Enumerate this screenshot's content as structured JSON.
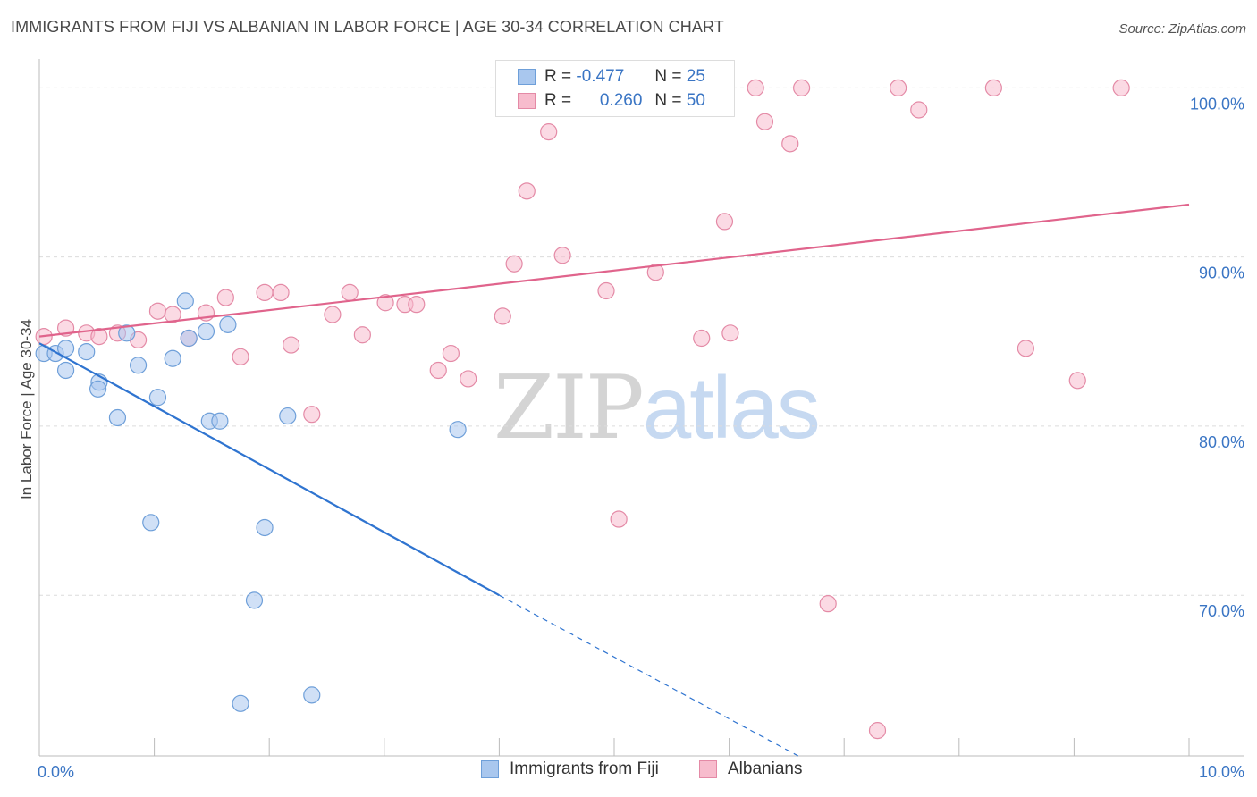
{
  "title": "IMMIGRANTS FROM FIJI VS ALBANIAN IN LABOR FORCE | AGE 30-34 CORRELATION CHART",
  "source": "Source: ZipAtlas.com",
  "watermark": {
    "zip": "ZIP",
    "atlas": "atlas"
  },
  "legend_box": {
    "rows": [
      {
        "r_label": "R =",
        "r_value": "-0.477",
        "n_label": "N =",
        "n_value": "25"
      },
      {
        "r_label": "R =",
        "r_value": "0.260",
        "n_label": "N =",
        "n_value": "50"
      }
    ]
  },
  "colors": {
    "fiji": "#a9c7ee",
    "fiji_stroke": "#6e9fd9",
    "fiji_line": "#2f74d0",
    "alb": "#f7bccd",
    "alb_stroke": "#e48aa6",
    "alb_line": "#e0648c",
    "axis_text": "#3a75c4",
    "grid": "#dcdcdc"
  },
  "chart_data": {
    "type": "scatter",
    "title": "IMMIGRANTS FROM FIJI VS ALBANIAN IN LABOR FORCE | AGE 30-34 CORRELATION CHART",
    "xlabel": "",
    "ylabel": "In Labor Force | Age 30-34",
    "xlim": [
      0,
      10
    ],
    "ylim": [
      60.5,
      101.5
    ],
    "x_tick_labels": [
      "0.0%",
      "10.0%"
    ],
    "y_ticks": [
      70,
      80,
      90,
      100
    ],
    "y_tick_labels": [
      "70.0%",
      "80.0%",
      "90.0%",
      "100.0%"
    ],
    "grid": true,
    "legend_position": "top-center",
    "series": [
      {
        "name": "Immigrants from Fiji",
        "stats": {
          "R": -0.477,
          "N": 25
        },
        "points": [
          [
            0.04,
            84.3
          ],
          [
            0.14,
            84.3
          ],
          [
            0.23,
            84.6
          ],
          [
            0.41,
            84.4
          ],
          [
            0.23,
            83.3
          ],
          [
            0.52,
            82.6
          ],
          [
            0.51,
            82.2
          ],
          [
            0.68,
            80.5
          ],
          [
            0.76,
            85.5
          ],
          [
            0.86,
            83.6
          ],
          [
            1.03,
            81.7
          ],
          [
            1.16,
            84.0
          ],
          [
            1.3,
            85.2
          ],
          [
            1.45,
            85.6
          ],
          [
            1.27,
            87.4
          ],
          [
            1.64,
            86.0
          ],
          [
            1.48,
            80.3
          ],
          [
            1.57,
            80.3
          ],
          [
            2.16,
            80.6
          ],
          [
            3.64,
            79.8
          ],
          [
            0.97,
            74.3
          ],
          [
            1.96,
            74.0
          ],
          [
            1.87,
            69.7
          ],
          [
            1.75,
            63.6
          ],
          [
            2.37,
            64.1
          ]
        ],
        "trend": {
          "x0": 0.0,
          "y0": 84.9,
          "x1": 4.0,
          "y1": 70.0,
          "dashed_to": {
            "x": 6.6,
            "y": 60.5
          }
        }
      },
      {
        "name": "Albanians",
        "stats": {
          "R": 0.26,
          "N": 50
        },
        "points": [
          [
            0.04,
            85.3
          ],
          [
            0.23,
            85.8
          ],
          [
            0.41,
            85.5
          ],
          [
            0.52,
            85.3
          ],
          [
            0.68,
            85.5
          ],
          [
            0.86,
            85.1
          ],
          [
            1.03,
            86.8
          ],
          [
            1.16,
            86.6
          ],
          [
            1.3,
            85.2
          ],
          [
            1.45,
            86.7
          ],
          [
            1.62,
            87.6
          ],
          [
            1.75,
            84.1
          ],
          [
            1.96,
            87.9
          ],
          [
            2.1,
            87.9
          ],
          [
            2.19,
            84.8
          ],
          [
            2.37,
            80.7
          ],
          [
            2.55,
            86.6
          ],
          [
            2.7,
            87.9
          ],
          [
            2.81,
            85.4
          ],
          [
            3.01,
            87.3
          ],
          [
            3.18,
            87.2
          ],
          [
            3.28,
            87.2
          ],
          [
            3.47,
            83.3
          ],
          [
            3.58,
            84.3
          ],
          [
            3.73,
            82.8
          ],
          [
            4.03,
            86.5
          ],
          [
            4.13,
            89.6
          ],
          [
            4.24,
            93.9
          ],
          [
            4.43,
            97.4
          ],
          [
            4.55,
            90.1
          ],
          [
            4.66,
            100.0
          ],
          [
            4.93,
            88.0
          ],
          [
            5.04,
            74.5
          ],
          [
            5.36,
            89.1
          ],
          [
            5.5,
            99.9
          ],
          [
            5.76,
            85.2
          ],
          [
            5.96,
            92.1
          ],
          [
            6.01,
            85.5
          ],
          [
            6.23,
            100.0
          ],
          [
            6.31,
            98.0
          ],
          [
            6.53,
            96.7
          ],
          [
            6.63,
            100.0
          ],
          [
            6.86,
            69.5
          ],
          [
            7.29,
            62.0
          ],
          [
            7.47,
            100.0
          ],
          [
            7.65,
            98.7
          ],
          [
            8.3,
            100.0
          ],
          [
            8.58,
            84.6
          ],
          [
            9.03,
            82.7
          ],
          [
            9.41,
            100.0
          ]
        ],
        "trend": {
          "x0": 0.0,
          "y0": 85.3,
          "x1": 10.0,
          "y1": 93.1
        }
      }
    ]
  }
}
